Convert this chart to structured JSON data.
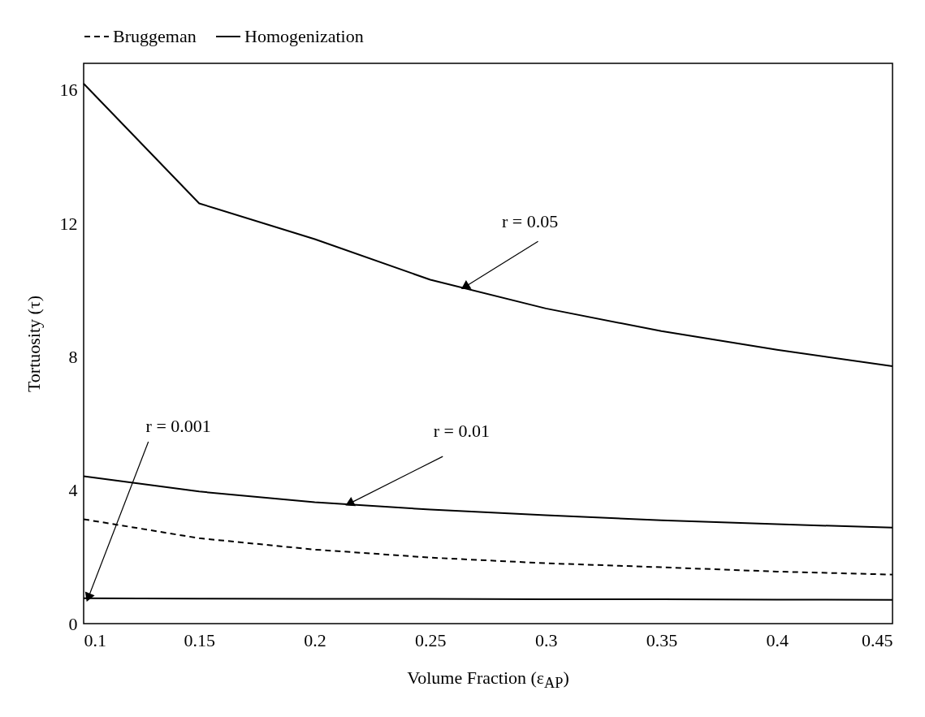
{
  "chart_data": {
    "type": "line",
    "xlabel": "Volume Fraction (ε$_{AP}$)",
    "ylabel": "Tortuosity (τ)",
    "x": [
      0.1,
      0.15,
      0.2,
      0.25,
      0.3,
      0.35,
      0.4,
      0.45
    ],
    "series": [
      {
        "name": "Bruggeman",
        "color": "#000000",
        "line_style": "dashed",
        "values": [
          3.13,
          2.56,
          2.22,
          1.98,
          1.81,
          1.69,
          1.56,
          1.47
        ]
      },
      {
        "name": "Homogenization",
        "color": "#000000",
        "line_style": "solid",
        "values": [
          16.19,
          12.6,
          11.53,
          10.31,
          9.45,
          8.77,
          8.21,
          7.72
        ]
      },
      {
        "color": "#000000",
        "line_style": "solid",
        "values": [
          4.42,
          3.96,
          3.64,
          3.42,
          3.25,
          3.1,
          2.98,
          2.88
        ]
      },
      {
        "color": "#000000",
        "line_style": "solid",
        "values": [
          0.76,
          0.75,
          0.74,
          0.74,
          0.73,
          0.73,
          0.72,
          0.71
        ]
      }
    ],
    "xlim": [
      0.1,
      0.45
    ],
    "xticks": [
      0.1,
      0.15,
      0.2,
      0.25,
      0.3,
      0.35,
      0.4,
      0.45
    ],
    "ylim": [
      0,
      16.8
    ],
    "yticks": [
      0,
      4,
      8,
      12,
      16
    ],
    "grid": false,
    "legend": "top",
    "marker": "none",
    "annotations": [
      {
        "text": "r = 0.05",
        "x": 0.265,
        "y": 10.1
      },
      {
        "text": "r = 0.01",
        "x": 0.215,
        "y": 3.6
      },
      {
        "text": "r = 0.001",
        "x": 0.102,
        "y": 0.78
      }
    ]
  }
}
